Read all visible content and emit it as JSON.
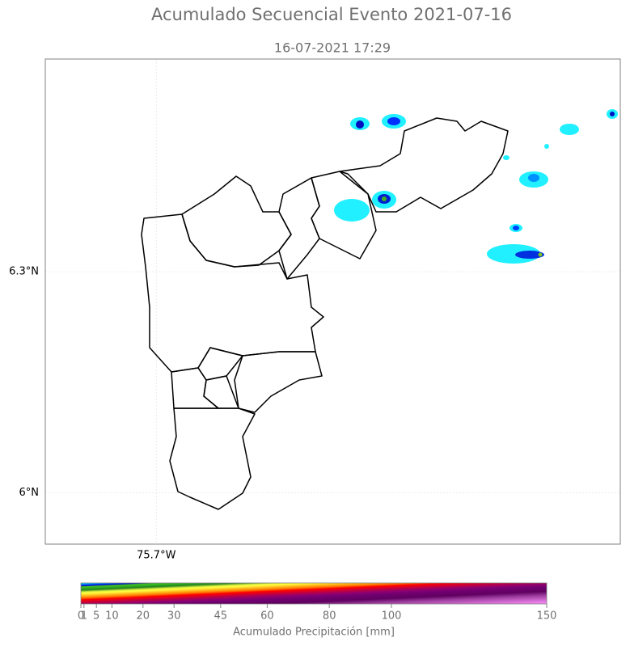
{
  "chart_data": {
    "type": "map",
    "title": "Acumulado Secuencial Evento 2021-07-16",
    "subtitle": "16-07-2021 17:29",
    "xlim": [
      -75.851,
      -75.069
    ],
    "ylim": [
      5.93,
      6.589
    ],
    "xticks": [
      {
        "value": -75.7,
        "label": "75.7°W"
      }
    ],
    "yticks": [
      {
        "value": 6.0,
        "label": "6°N"
      },
      {
        "value": 6.3,
        "label": "6.3°N"
      }
    ],
    "grid": true,
    "colorbar": {
      "label": "Acumulado Precipitación [mm]",
      "lim": [
        0,
        150
      ],
      "ticks": [
        0,
        1,
        5,
        10,
        20,
        30,
        45,
        60,
        80,
        100,
        150
      ]
    }
  }
}
